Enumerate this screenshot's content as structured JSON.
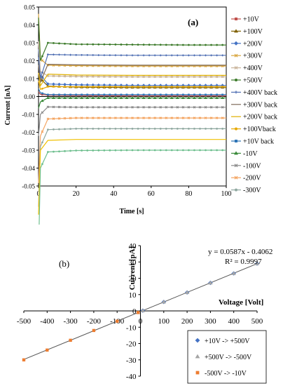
{
  "panel_a": {
    "label": "(a)",
    "ylabel": "Current [nA]",
    "xlabel": "Time [s]",
    "yticks": [
      "0.05",
      "0.04",
      "0.03",
      "0.02",
      "0.01",
      "0.00",
      "-0.01",
      "-0.02",
      "-0.03",
      "-0.04",
      "-0.05"
    ],
    "xticks": [
      "0",
      "20",
      "40",
      "60",
      "80",
      "100"
    ]
  },
  "panel_b": {
    "label": "(b)",
    "ylabel": "Current [pA]",
    "xlabel": "Voltage [Volt]",
    "equation": "y = 0.0587x - 0.4062",
    "r2": "R² = 0.9997",
    "yticks": [
      "40",
      "30",
      "20",
      "10",
      "0",
      "-10",
      "-20",
      "-30",
      "-40"
    ],
    "xticks": [
      "-500",
      "-400",
      "-300",
      "-200",
      "-100",
      "0",
      "100",
      "200",
      "300",
      "400",
      "500"
    ]
  },
  "chart_data": [
    {
      "type": "line",
      "title": "(a)",
      "xlabel": "Time [s]",
      "ylabel": "Current [nA]",
      "xlim": [
        0,
        100
      ],
      "ylim": [
        -0.05,
        0.05
      ],
      "grid": false,
      "legend": "right",
      "series": [
        {
          "name": "+10V",
          "color": "#c0504d",
          "marker": "square",
          "values": [
            0.0012,
            0.0007,
            0.0005,
            0.0004,
            0.0004,
            0.0004
          ]
        },
        {
          "name": "+100V",
          "color": "#7f6000",
          "marker": "triangle",
          "values": [
            0.01,
            0.0058,
            0.0052,
            0.005,
            0.005,
            0.005
          ]
        },
        {
          "name": "+200V",
          "color": "#4472c4",
          "marker": "diamond",
          "values": [
            0.012,
            0.007,
            0.0065,
            0.0062,
            0.0062,
            0.0062
          ]
        },
        {
          "name": "+300V",
          "color": "#d9a640",
          "marker": "x",
          "values": [
            0.021,
            0.0175,
            0.0172,
            0.017,
            0.017,
            0.017
          ]
        },
        {
          "name": "+400V",
          "color": "#c9b49b",
          "marker": "x",
          "values": [
            0.014,
            0.0115,
            0.0112,
            0.011,
            0.011,
            0.011
          ]
        },
        {
          "name": "+500V",
          "color": "#3c7a2a",
          "marker": "circle",
          "values": [
            0.02,
            0.03,
            0.0292,
            0.029,
            0.0288,
            0.0288
          ]
        },
        {
          "name": "+400V back",
          "color": "#4f6fb3",
          "marker": "plus",
          "values": [
            0.01,
            0.0235,
            0.0232,
            0.023,
            0.023,
            0.023
          ]
        },
        {
          "name": "+300V back",
          "color": "#7f6b5a",
          "marker": "line",
          "values": [
            0.008,
            0.018,
            0.0177,
            0.0175,
            0.0175,
            0.0175
          ]
        },
        {
          "name": "+200V back",
          "color": "#e0b000",
          "marker": "line",
          "values": [
            0.006,
            0.0125,
            0.012,
            0.0118,
            0.0118,
            0.0118
          ]
        },
        {
          "name": "+100Vback",
          "color": "#e6a800",
          "marker": "circle",
          "values": [
            0.004,
            0.0055,
            0.0055,
            0.0055,
            0.0055,
            0.0055
          ]
        },
        {
          "name": "+10V back",
          "color": "#2e75b6",
          "marker": "square",
          "values": [
            0.002,
            0.001,
            0.001,
            0.001,
            0.001,
            0.001
          ]
        },
        {
          "name": "-10V",
          "color": "#3a8a3a",
          "marker": "triangle",
          "values": [
            -0.003,
            -0.0008,
            -0.0008,
            -0.0008,
            -0.0008,
            -0.0008
          ]
        },
        {
          "name": "-100V",
          "color": "#8a8a8a",
          "marker": "x",
          "values": [
            -0.01,
            -0.0058,
            -0.006,
            -0.006,
            -0.006,
            -0.006
          ]
        },
        {
          "name": "-200V",
          "color": "#f4a460",
          "marker": "x",
          "values": [
            -0.022,
            -0.0125,
            -0.012,
            -0.012,
            -0.012,
            -0.012
          ]
        },
        {
          "name": "-300V",
          "color": "#8fa8a0",
          "marker": "circle",
          "values": [
            -0.028,
            -0.0185,
            -0.018,
            -0.018,
            -0.018,
            -0.018
          ]
        },
        {
          "name": "",
          "color": "#f0c000",
          "marker": "line",
          "values": [
            -0.03,
            -0.0245,
            -0.024,
            -0.024,
            -0.024,
            -0.024
          ]
        },
        {
          "name": "",
          "color": "#6fbf8f",
          "marker": "circle",
          "values": [
            -0.04,
            -0.031,
            -0.0302,
            -0.03,
            -0.03,
            -0.03
          ]
        }
      ],
      "x": [
        1,
        5,
        20,
        50,
        80,
        100
      ]
    },
    {
      "type": "scatter",
      "title": "(b)",
      "xlabel": "Voltage [Volt]",
      "ylabel": "Current [pA]",
      "xlim": [
        -500,
        500
      ],
      "ylim": [
        -40,
        40
      ],
      "grid": false,
      "legend": "bottom-right",
      "trendline": {
        "slope": 0.0587,
        "intercept": -0.4062,
        "equation": "y = 0.0587x - 0.4062",
        "r2": "R² = 0.9997"
      },
      "series": [
        {
          "name": "+10V -> +500V",
          "color": "#4472c4",
          "marker": "diamond",
          "x": [
            10,
            100,
            200,
            300,
            400,
            500
          ],
          "y": [
            0.2,
            5.5,
            11.3,
            17.2,
            23.0,
            29.0
          ]
        },
        {
          "name": "+500V -> -500V",
          "color": "#a5a5a5",
          "marker": "triangle",
          "x": [
            500,
            400,
            300,
            200,
            100,
            10,
            -10
          ],
          "y": [
            29.0,
            23.0,
            17.2,
            11.3,
            5.5,
            0.2,
            -1.0
          ]
        },
        {
          "name": "-500V -> -10V",
          "color": "#ed7d31",
          "marker": "square",
          "x": [
            -500,
            -400,
            -300,
            -200,
            -100,
            -10
          ],
          "y": [
            -30.0,
            -24.0,
            -18.0,
            -12.0,
            -6.3,
            -1.0
          ]
        }
      ]
    }
  ]
}
